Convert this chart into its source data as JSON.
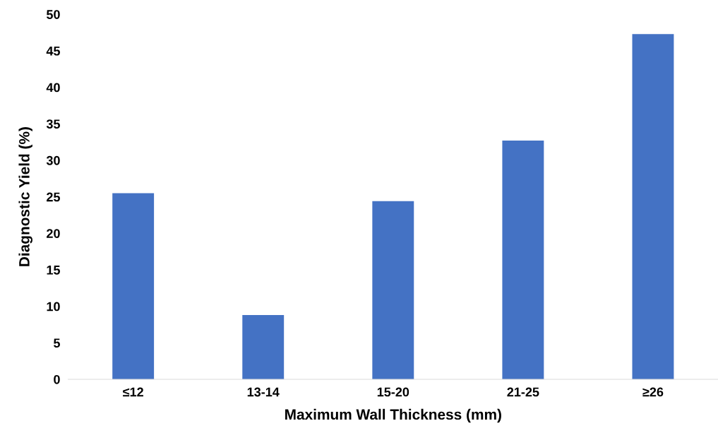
{
  "chart_data": {
    "type": "bar",
    "xlabel": "Maximum Wall Thickness (mm)",
    "ylabel": "Diagnostic Yield (%)",
    "categories": [
      "≤12",
      "13-14",
      "15-20",
      "21-25",
      "≥26"
    ],
    "values": [
      25.5,
      8.8,
      24.4,
      32.7,
      47.3
    ],
    "color": "#4472c4",
    "ylim": [
      0,
      50
    ],
    "yticks": [
      0,
      5,
      10,
      15,
      20,
      25,
      30,
      35,
      40,
      45,
      50
    ],
    "grid": false,
    "legend": false
  }
}
